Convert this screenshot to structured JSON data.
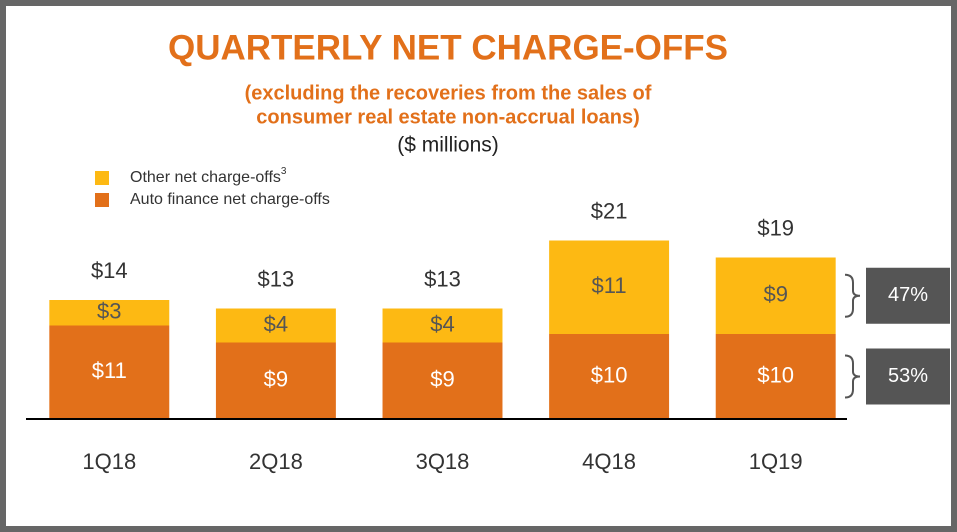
{
  "chart_data": {
    "type": "stacked_bar",
    "title": "QUARTERLY NET CHARGE-OFFS",
    "subtitle": [
      "(excluding the recoveries from the sales of",
      "consumer real estate non-accrual loans)"
    ],
    "unit_note": "($ millions)",
    "categories": [
      "1Q18",
      "2Q18",
      "3Q18",
      "4Q18",
      "1Q19"
    ],
    "series": [
      {
        "name": "Auto finance net charge-offs",
        "color": "#e2701a",
        "values": [
          11,
          9,
          9,
          10,
          10
        ],
        "value_labels": [
          "$11",
          "$9",
          "$9",
          "$10",
          "$10"
        ]
      },
      {
        "name": "Other net charge-offs",
        "footnote": "3",
        "color": "#fdb913",
        "values": [
          3,
          4,
          4,
          11,
          9
        ],
        "value_labels": [
          "$3",
          "$4",
          "$4",
          "$11",
          "$9"
        ]
      }
    ],
    "totals": {
      "values": [
        14,
        13,
        13,
        21,
        19
      ],
      "value_labels": [
        "$14",
        "$13",
        "$13",
        "$21",
        "$19"
      ]
    },
    "annotations": [
      {
        "series": 1,
        "text": "47%"
      },
      {
        "series": 0,
        "text": "53%"
      }
    ],
    "ylim": [
      0,
      24
    ],
    "legend": "top-left"
  }
}
